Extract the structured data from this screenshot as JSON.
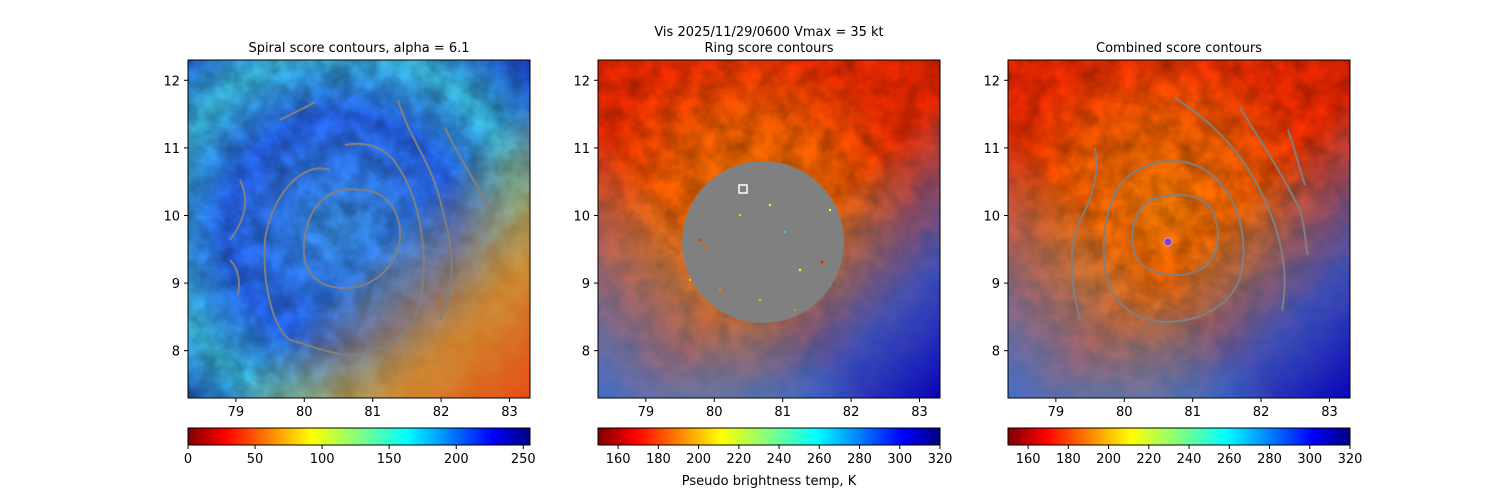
{
  "figure": {
    "suptitle_line1": "Vis  2025/11/29/0600    Vmax = 35 kt"
  },
  "chart_data": [
    {
      "type": "heatmap",
      "title": "Spiral score contours, alpha =  6.1",
      "x_ticks": [
        "79",
        "80",
        "81",
        "82",
        "83"
      ],
      "y_ticks": [
        "8",
        "9",
        "10",
        "11",
        "12"
      ],
      "xlim": [
        78.3,
        83.3
      ],
      "ylim": [
        7.3,
        12.3
      ],
      "colormap": "jet",
      "colorbar": {
        "ticks": [
          "0",
          "50",
          "100",
          "150",
          "200",
          "250"
        ],
        "range": [
          0,
          255
        ],
        "reversed": true
      },
      "contour_color": "#808080",
      "eye_marker": null
    },
    {
      "type": "heatmap",
      "title": "Ring score contours",
      "x_ticks": [
        "79",
        "80",
        "81",
        "82",
        "83"
      ],
      "y_ticks": [
        "8",
        "9",
        "10",
        "11",
        "12"
      ],
      "xlim": [
        78.3,
        83.3
      ],
      "ylim": [
        7.3,
        12.3
      ],
      "colormap": "jet",
      "colorbar": {
        "ticks": [
          "160",
          "180",
          "200",
          "220",
          "240",
          "260",
          "280",
          "300",
          "320"
        ],
        "range": [
          150,
          320
        ],
        "reversed": true,
        "label": "Pseudo brightness temp, K"
      },
      "ring_region": {
        "center_lon": 80.7,
        "center_lat": 9.6,
        "radius_deg": 1.2,
        "color": "#808080"
      },
      "marker": {
        "lon": 80.4,
        "lat": 10.4,
        "shape": "square",
        "color": "#ffffff"
      }
    },
    {
      "type": "heatmap",
      "title": "Combined score contours",
      "x_ticks": [
        "79",
        "80",
        "81",
        "82",
        "83"
      ],
      "y_ticks": [
        "8",
        "9",
        "10",
        "11",
        "12"
      ],
      "xlim": [
        78.3,
        83.3
      ],
      "ylim": [
        7.3,
        12.3
      ],
      "colormap": "jet",
      "colorbar": {
        "ticks": [
          "160",
          "180",
          "200",
          "220",
          "240",
          "260",
          "280",
          "300",
          "320"
        ],
        "range": [
          150,
          320
        ],
        "reversed": true
      },
      "contour_color": "#808080",
      "eye_marker": {
        "lon": 80.6,
        "lat": 9.6,
        "color": "#8040c0"
      }
    }
  ]
}
